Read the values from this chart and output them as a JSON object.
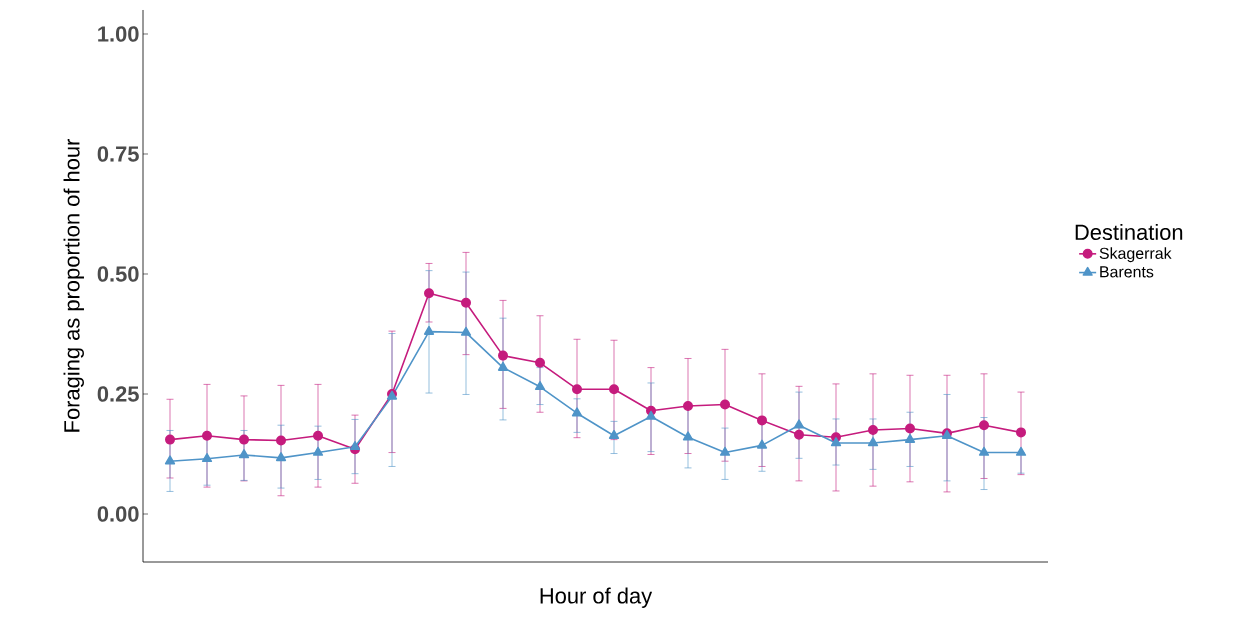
{
  "chart_data": {
    "type": "line",
    "xlabel": "Hour of day",
    "ylabel": "Foraging as proportion of hour",
    "legend_title": "Destination",
    "categories": [
      null,
      null,
      null,
      null,
      null,
      null,
      null,
      null,
      null,
      null,
      null,
      null,
      null,
      null,
      null,
      null,
      null,
      null,
      null,
      null,
      null,
      null,
      null,
      null
    ],
    "ylim": [
      -0.1,
      1.05
    ],
    "yticks": [
      {
        "value": 0,
        "label": "0.00"
      },
      {
        "value": 0.25,
        "label": "0.25"
      },
      {
        "value": 0.5,
        "label": "0.50"
      },
      {
        "value": 0.75,
        "label": "0.75"
      },
      {
        "value": 1,
        "label": "1.00"
      }
    ],
    "tick_labels": "y",
    "grid": false,
    "legend": "right",
    "line_style": "solid",
    "series": [
      {
        "name": "Skagerrak",
        "color": "#c51b7d",
        "marker": "circle",
        "values": [
          0.155,
          0.163,
          0.155,
          0.153,
          0.163,
          0.135,
          0.25,
          0.46,
          0.44,
          0.33,
          0.315,
          0.26,
          0.26,
          0.215,
          0.225,
          0.228,
          0.195,
          0.165,
          0.16,
          0.175,
          0.178,
          0.168,
          0.185,
          0.17
        ],
        "errors": [
          [
            0.075,
            0.239
          ],
          [
            0.056,
            0.27
          ],
          [
            0.069,
            0.246
          ],
          [
            0.038,
            0.268
          ],
          [
            0.056,
            0.27
          ],
          [
            0.064,
            0.206
          ],
          [
            0.128,
            0.381
          ],
          [
            0.4,
            0.522
          ],
          [
            0.332,
            0.545
          ],
          [
            0.22,
            0.445
          ],
          [
            0.212,
            0.413
          ],
          [
            0.159,
            0.364
          ],
          [
            0.155,
            0.362
          ],
          [
            0.124,
            0.305
          ],
          [
            0.126,
            0.324
          ],
          [
            0.11,
            0.343
          ],
          [
            0.099,
            0.292
          ],
          [
            0.069,
            0.266
          ],
          [
            0.048,
            0.271
          ],
          [
            0.058,
            0.292
          ],
          [
            0.067,
            0.289
          ],
          [
            0.046,
            0.289
          ],
          [
            0.074,
            0.292
          ],
          [
            0.082,
            0.254
          ]
        ]
      },
      {
        "name": "Barents",
        "color": "#4f94c8",
        "marker": "triangle",
        "values": [
          0.11,
          0.115,
          0.123,
          0.117,
          0.128,
          0.14,
          0.245,
          0.38,
          0.378,
          0.305,
          0.265,
          0.21,
          0.163,
          0.203,
          0.16,
          0.128,
          0.143,
          0.185,
          0.148,
          0.148,
          0.155,
          0.163,
          0.128,
          0.128
        ],
        "errors": [
          [
            0.047,
            0.174
          ],
          [
            0.06,
            0.17
          ],
          [
            0.07,
            0.174
          ],
          [
            0.054,
            0.185
          ],
          [
            0.072,
            0.183
          ],
          [
            0.084,
            0.197
          ],
          [
            0.099,
            0.376
          ],
          [
            0.252,
            0.507
          ],
          [
            0.249,
            0.504
          ],
          [
            0.196,
            0.408
          ],
          [
            0.228,
            0.305
          ],
          [
            0.17,
            0.24
          ],
          [
            0.126,
            0.193
          ],
          [
            0.13,
            0.273
          ],
          [
            0.096,
            0.22
          ],
          [
            0.072,
            0.179
          ],
          [
            0.089,
            0.2
          ],
          [
            0.116,
            0.254
          ],
          [
            0.102,
            0.198
          ],
          [
            0.093,
            0.198
          ],
          [
            0.099,
            0.212
          ],
          [
            0.069,
            0.249
          ],
          [
            0.051,
            0.201
          ],
          [
            0.085,
            0.128
          ]
        ]
      }
    ]
  }
}
